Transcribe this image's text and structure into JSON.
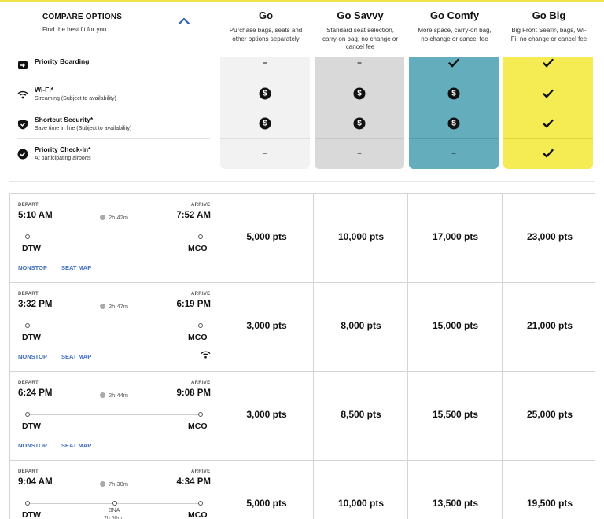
{
  "compare": {
    "title": "COMPARE OPTIONS",
    "subtitle": "Find the best fit for you."
  },
  "fares": [
    {
      "name": "Go",
      "desc": "Purchase bags, seats and other options separately",
      "color": "#f2f2f2"
    },
    {
      "name": "Go Savvy",
      "desc": "Standard seat selection, carry-on bag, no change or cancel fee",
      "color": "#d9d9d9"
    },
    {
      "name": "Go Comfy",
      "desc": "More space, carry-on bag, no change or cancel fee",
      "color": "#63adbc"
    },
    {
      "name": "Go Big",
      "desc": "Big Front Seat®, bags, Wi-Fi, no change or cancel fee",
      "color": "#f5ec53"
    }
  ],
  "amenities": [
    {
      "title": "Priority Boarding",
      "subtitle": "",
      "icon": "priority-boarding-icon",
      "marks": [
        "–",
        "–",
        "check",
        "check"
      ]
    },
    {
      "title": "Wi-Fi*",
      "subtitle": "Streaming (Subject to availability)",
      "icon": "wifi-icon",
      "marks": [
        "$",
        "$",
        "$",
        "check"
      ]
    },
    {
      "title": "Shortcut Security*",
      "subtitle": "Save time in line (Subject to availability)",
      "icon": "shield-icon",
      "marks": [
        "$",
        "$",
        "$",
        "check"
      ]
    },
    {
      "title": "Priority Check-In*",
      "subtitle": "At participating airports",
      "icon": "check-circle-icon",
      "marks": [
        "–",
        "–",
        "–",
        "check"
      ]
    }
  ],
  "labels": {
    "depart": "DEPART",
    "arrive": "ARRIVE",
    "nonstop": "NONSTOP",
    "seat_map": "SEAT MAP"
  },
  "flights": [
    {
      "depart": "5:10 AM",
      "arrive": "7:52 AM",
      "duration": "2h 42m",
      "from": "DTW",
      "to": "MCO",
      "nonstop": true,
      "wifi": false,
      "stop": "",
      "stop_time": "",
      "prices": [
        "5,000 pts",
        "10,000 pts",
        "17,000 pts",
        "23,000 pts"
      ]
    },
    {
      "depart": "3:32 PM",
      "arrive": "6:19 PM",
      "duration": "2h 47m",
      "from": "DTW",
      "to": "MCO",
      "nonstop": true,
      "wifi": true,
      "stop": "",
      "stop_time": "",
      "prices": [
        "3,000 pts",
        "8,000 pts",
        "15,000 pts",
        "21,000 pts"
      ]
    },
    {
      "depart": "6:24 PM",
      "arrive": "9:08 PM",
      "duration": "2h 44m",
      "from": "DTW",
      "to": "MCO",
      "nonstop": true,
      "wifi": false,
      "stop": "",
      "stop_time": "",
      "prices": [
        "3,000 pts",
        "8,500 pts",
        "15,500 pts",
        "25,000 pts"
      ]
    },
    {
      "depart": "9:04 AM",
      "arrive": "4:34 PM",
      "duration": "7h 30m",
      "from": "DTW",
      "to": "MCO",
      "nonstop": false,
      "wifi": false,
      "stop": "BNA",
      "stop_time": "2h 50m",
      "prices": [
        "5,000 pts",
        "10,000 pts",
        "13,500 pts",
        "19,500 pts"
      ]
    }
  ]
}
